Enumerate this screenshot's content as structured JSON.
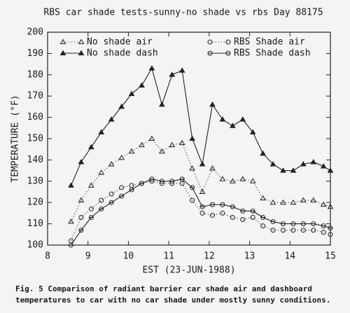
{
  "chart_data": {
    "type": "line",
    "title": "RBS car shade tests-sunny-no shade vs  rbs  Day 88175",
    "x_label": "EST (23-JUN-1988)",
    "y_label": "TEMPERATURE (°F)",
    "caption": [
      "Fig. 5  Comparison of radiant barrier car shade air and dashboard",
      "temperatures to car with no car shade under mostly sunny conditions."
    ],
    "x": [
      8.58,
      8.83,
      9.08,
      9.33,
      9.58,
      9.83,
      10.08,
      10.33,
      10.58,
      10.83,
      11.08,
      11.33,
      11.58,
      11.83,
      12.08,
      12.33,
      12.58,
      12.83,
      13.08,
      13.33,
      13.58,
      13.83,
      14.08,
      14.33,
      14.58,
      14.83,
      15.0
    ],
    "series": [
      {
        "name": "No shade air",
        "color": "#222222",
        "line_style": "dotted",
        "marker": "triangle-open",
        "values": [
          111,
          121,
          128,
          134,
          138,
          141,
          144,
          147,
          150,
          144,
          147,
          148,
          136,
          125,
          136,
          131,
          130,
          131,
          130,
          122,
          120,
          120,
          120,
          121,
          121,
          119,
          118
        ]
      },
      {
        "name": "No shade dash",
        "color": "#222222",
        "line_style": "solid",
        "marker": "triangle-filled",
        "values": [
          128,
          139,
          146,
          153,
          159,
          165,
          171,
          175,
          183,
          166,
          180,
          182,
          150,
          138,
          166,
          159,
          156,
          159,
          153,
          143,
          138,
          135,
          135,
          138,
          139,
          137,
          135
        ]
      },
      {
        "name": "RBS Shade air",
        "color": "#222222",
        "line_style": "dotted",
        "marker": "circle-open",
        "values": [
          102,
          113,
          117,
          121,
          124,
          127,
          128,
          129,
          130,
          129,
          129,
          129,
          121,
          115,
          114,
          115,
          113,
          112,
          113,
          109,
          107,
          107,
          107,
          107,
          107,
          106,
          105
        ]
      },
      {
        "name": "RBS Shade dash",
        "color": "#222222",
        "line_style": "solid",
        "marker": "circle-bar",
        "values": [
          100,
          107,
          113,
          117,
          120,
          123,
          126,
          129,
          131,
          130,
          130,
          131,
          127,
          118,
          119,
          119,
          118,
          116,
          116,
          113,
          111,
          110,
          110,
          110,
          110,
          109,
          108
        ]
      }
    ],
    "xlim": [
      8,
      15
    ],
    "xticks": [
      8,
      9,
      10,
      11,
      12,
      13,
      14,
      15
    ],
    "ylim": [
      100,
      200
    ],
    "yticks": [
      100,
      110,
      120,
      130,
      140,
      150,
      160,
      170,
      180,
      190,
      200
    ],
    "legend": "top"
  }
}
